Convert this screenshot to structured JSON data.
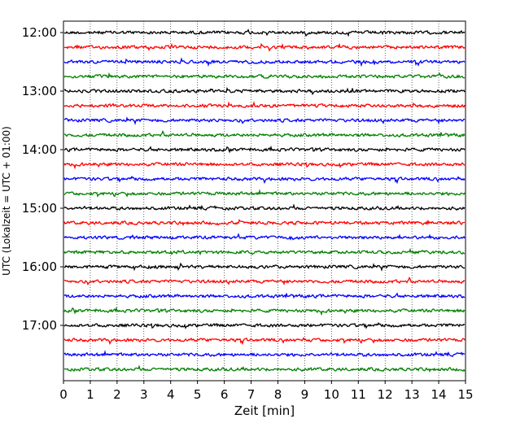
{
  "chart_data": {
    "type": "line",
    "title": "",
    "xlabel": "Zeit  [min]",
    "ylabel": "UTC (Lokalzeit = UTC + 01:00)",
    "xlim": [
      0,
      15
    ],
    "xticks": [
      0,
      1,
      2,
      3,
      4,
      5,
      6,
      7,
      8,
      9,
      10,
      11,
      12,
      13,
      14,
      15
    ],
    "yticks": [
      "12:00",
      "13:00",
      "14:00",
      "15:00",
      "16:00",
      "17:00"
    ],
    "grid": "vertical dotted",
    "trace_start": "12:00",
    "trace_interval_min": 15,
    "trace_count": 24,
    "trace_colors": [
      "#000000",
      "#ff0000",
      "#0000ff",
      "#008000"
    ]
  }
}
